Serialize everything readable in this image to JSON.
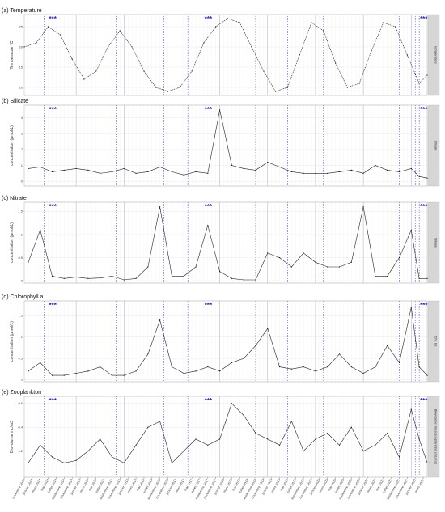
{
  "panels": [
    {
      "id": "temperature",
      "title": "(a) Temperature",
      "ylabel": "Temperature °C",
      "strip": "temperature",
      "yticks": [
        10,
        15,
        20,
        25
      ],
      "ylim": [
        8,
        28
      ],
      "seriesName": "temperature"
    },
    {
      "id": "silicate",
      "title": "(b) Silicate",
      "ylabel": "concentration (µmol/L)",
      "strip": "Silicate",
      "yticks": [
        0,
        1,
        2,
        3,
        4
      ],
      "ylim": [
        -0.3,
        4.8
      ],
      "seriesName": "Silicate"
    },
    {
      "id": "nitrate",
      "title": "(c) Nitrate",
      "ylabel": "concentration (µmol/L)",
      "strip": "Nitrate",
      "yticks": [
        0.0,
        0.5,
        1.0,
        1.5
      ],
      "ylim": [
        -0.05,
        1.7
      ],
      "seriesName": "Nitrate"
    },
    {
      "id": "chlorophyll",
      "title": "(d) Chlorophyll a",
      "ylabel": "concentration (µmol/L)",
      "strip": "Chl_tot",
      "yticks": [
        0.0,
        0.5,
        1.0,
        1.5
      ],
      "ylim": [
        -0.05,
        1.85
      ],
      "seriesName": "Chl_tot"
    },
    {
      "id": "zooplankton",
      "title": "(e) Zooplankton",
      "ylabel": "Biovolume mL/m3",
      "strip": "Biovolume_mesozooplankton (mL/m3)",
      "yticks": [
        0.2,
        0.4,
        0.6
      ],
      "ylim": [
        -0.02,
        0.66
      ],
      "seriesName": "Biovolume_mesozooplankton (mL/m3)"
    }
  ],
  "stars": "***",
  "xticks": [
    "novembre 2013",
    "janvier 2014",
    "mars 2014",
    "mai 2014",
    "juillet 2014",
    "septembre 2014",
    "novembre 2014",
    "janvier 2015",
    "mars 2015",
    "mai 2015",
    "juillet 2015",
    "septembre 2015",
    "novembre 2015",
    "janvier 2016",
    "mars 2016",
    "mai 2016",
    "juillet 2016",
    "septembre 2016",
    "novembre 2016",
    "janvier 2017",
    "mars 2017",
    "mai 2017",
    "juillet 2017",
    "septembre 2017",
    "novembre 2017",
    "janvier 2018",
    "mars 2018",
    "mai 2018",
    "juillet 2018",
    "septembre 2018",
    "novembre 2018",
    "janvier 2019",
    "mars 2019",
    "mai 2019",
    "juillet 2019",
    "septembre 2019",
    "novembre 2019",
    "janvier 2020",
    "mars 2020",
    "mai 2020",
    "juillet 2020",
    "septembre 2020",
    "novembre 2020",
    "janvier 2021",
    "mars 2021",
    "mai 2021",
    "juillet 2021",
    "septembre 2021",
    "novembre 2021",
    "janvier 2022",
    "mars 2022"
  ],
  "chart_data": [
    {
      "type": "line",
      "title": "(a) Temperature",
      "ylabel": "Temperature °C",
      "x_range": [
        "2013-11",
        "2022-04"
      ],
      "ylim": [
        8,
        28
      ],
      "grid": true,
      "series": [
        {
          "name": "temperature",
          "x": [
            "2013-11",
            "2014-02",
            "2014-05",
            "2014-08",
            "2014-11",
            "2015-02",
            "2015-05",
            "2015-08",
            "2015-11",
            "2016-02",
            "2016-05",
            "2016-08",
            "2016-11",
            "2017-02",
            "2017-05",
            "2017-08",
            "2017-11",
            "2018-02",
            "2018-05",
            "2018-08",
            "2018-11",
            "2019-02",
            "2019-05",
            "2019-08",
            "2019-11",
            "2020-02",
            "2020-05",
            "2020-08",
            "2020-11",
            "2021-02",
            "2021-05",
            "2021-08",
            "2021-11",
            "2022-02",
            "2022-04"
          ],
          "values": [
            20,
            21,
            25,
            23,
            17,
            12,
            14,
            20,
            24,
            20,
            14,
            10,
            9,
            10,
            14,
            21,
            25,
            27,
            26,
            20,
            14,
            9,
            10,
            18,
            26,
            24,
            16,
            10,
            11,
            19,
            26,
            25,
            18,
            11,
            13
          ]
        }
      ]
    },
    {
      "type": "line",
      "title": "(b) Silicate",
      "ylabel": "concentration (µmol/L)",
      "x_range": [
        "2013-11",
        "2022-04"
      ],
      "ylim": [
        -0.3,
        4.8
      ],
      "grid": true,
      "series": [
        {
          "name": "Silicate",
          "x": [
            "2013-12",
            "2014-03",
            "2014-06",
            "2014-09",
            "2014-12",
            "2015-03",
            "2015-06",
            "2015-09",
            "2015-12",
            "2016-03",
            "2016-06",
            "2016-09",
            "2016-12",
            "2017-03",
            "2017-06",
            "2017-09",
            "2017-12",
            "2018-03",
            "2018-06",
            "2018-09",
            "2018-12",
            "2019-03",
            "2019-06",
            "2019-09",
            "2019-12",
            "2020-03",
            "2020-06",
            "2020-09",
            "2020-12",
            "2021-03",
            "2021-06",
            "2021-09",
            "2021-12",
            "2022-02",
            "2022-04"
          ],
          "values": [
            0.8,
            0.9,
            0.6,
            0.7,
            0.8,
            0.7,
            0.5,
            0.6,
            0.8,
            0.5,
            0.6,
            0.9,
            0.6,
            0.4,
            0.6,
            0.5,
            4.5,
            1.0,
            0.8,
            0.7,
            1.2,
            0.9,
            0.6,
            0.5,
            0.5,
            0.5,
            0.6,
            0.7,
            0.5,
            1.0,
            0.7,
            0.6,
            0.8,
            0.3,
            0.2
          ]
        }
      ]
    },
    {
      "type": "line",
      "title": "(c) Nitrate",
      "ylabel": "concentration (µmol/L)",
      "x_range": [
        "2013-11",
        "2022-04"
      ],
      "ylim": [
        -0.05,
        1.7
      ],
      "grid": true,
      "series": [
        {
          "name": "Nitrate",
          "x": [
            "2013-12",
            "2014-03",
            "2014-06",
            "2014-09",
            "2014-12",
            "2015-03",
            "2015-06",
            "2015-09",
            "2015-12",
            "2016-03",
            "2016-06",
            "2016-09",
            "2016-12",
            "2017-03",
            "2017-06",
            "2017-09",
            "2017-12",
            "2018-03",
            "2018-06",
            "2018-09",
            "2018-12",
            "2019-03",
            "2019-06",
            "2019-09",
            "2019-12",
            "2020-03",
            "2020-06",
            "2020-09",
            "2020-12",
            "2021-03",
            "2021-06",
            "2021-09",
            "2021-12",
            "2022-02",
            "2022-04"
          ],
          "values": [
            0.4,
            1.1,
            0.1,
            0.05,
            0.08,
            0.05,
            0.06,
            0.1,
            0.02,
            0.05,
            0.3,
            1.6,
            0.1,
            0.1,
            0.3,
            1.2,
            0.2,
            0.05,
            0.02,
            0.02,
            0.6,
            0.5,
            0.3,
            0.6,
            0.4,
            0.3,
            0.3,
            0.4,
            1.6,
            0.1,
            0.1,
            0.5,
            1.1,
            0.05,
            0.05
          ]
        }
      ]
    },
    {
      "type": "line",
      "title": "(d) Chlorophyll a",
      "ylabel": "concentration (µmol/L)",
      "x_range": [
        "2013-11",
        "2022-04"
      ],
      "ylim": [
        -0.05,
        1.85
      ],
      "grid": true,
      "series": [
        {
          "name": "Chl_tot",
          "x": [
            "2013-12",
            "2014-03",
            "2014-06",
            "2014-09",
            "2014-12",
            "2015-03",
            "2015-06",
            "2015-09",
            "2015-12",
            "2016-03",
            "2016-06",
            "2016-09",
            "2016-12",
            "2017-03",
            "2017-06",
            "2017-09",
            "2017-12",
            "2018-03",
            "2018-06",
            "2018-09",
            "2018-12",
            "2019-03",
            "2019-06",
            "2019-09",
            "2019-12",
            "2020-03",
            "2020-06",
            "2020-09",
            "2020-12",
            "2021-03",
            "2021-06",
            "2021-09",
            "2021-12",
            "2022-02",
            "2022-04"
          ],
          "values": [
            0.2,
            0.4,
            0.1,
            0.1,
            0.15,
            0.2,
            0.3,
            0.1,
            0.1,
            0.2,
            0.6,
            1.4,
            0.3,
            0.15,
            0.2,
            0.3,
            0.2,
            0.4,
            0.5,
            0.8,
            1.2,
            0.3,
            0.25,
            0.3,
            0.2,
            0.3,
            0.6,
            0.3,
            0.15,
            0.3,
            0.8,
            0.4,
            1.7,
            0.3,
            0.1
          ]
        }
      ]
    },
    {
      "type": "line",
      "title": "(e) Zooplankton",
      "ylabel": "Biovolume mL/m3",
      "x_range": [
        "2013-11",
        "2022-04"
      ],
      "ylim": [
        -0.02,
        0.66
      ],
      "grid": true,
      "series": [
        {
          "name": "Biovolume_mesozooplankton (mL/m3)",
          "x": [
            "2013-12",
            "2014-03",
            "2014-06",
            "2014-09",
            "2014-12",
            "2015-03",
            "2015-06",
            "2015-09",
            "2015-12",
            "2016-03",
            "2016-06",
            "2016-09",
            "2016-12",
            "2017-03",
            "2017-06",
            "2017-09",
            "2017-12",
            "2018-03",
            "2018-06",
            "2018-09",
            "2018-12",
            "2019-03",
            "2019-06",
            "2019-09",
            "2019-12",
            "2020-03",
            "2020-06",
            "2020-09",
            "2020-12",
            "2021-03",
            "2021-06",
            "2021-09",
            "2021-12",
            "2022-02",
            "2022-04"
          ],
          "values": [
            0.1,
            0.25,
            0.15,
            0.1,
            0.12,
            0.2,
            0.3,
            0.15,
            0.1,
            0.25,
            0.4,
            0.45,
            0.1,
            0.2,
            0.3,
            0.25,
            0.3,
            0.6,
            0.5,
            0.35,
            0.3,
            0.25,
            0.45,
            0.2,
            0.3,
            0.35,
            0.25,
            0.4,
            0.2,
            0.25,
            0.35,
            0.15,
            0.55,
            0.3,
            0.1
          ]
        }
      ]
    }
  ]
}
